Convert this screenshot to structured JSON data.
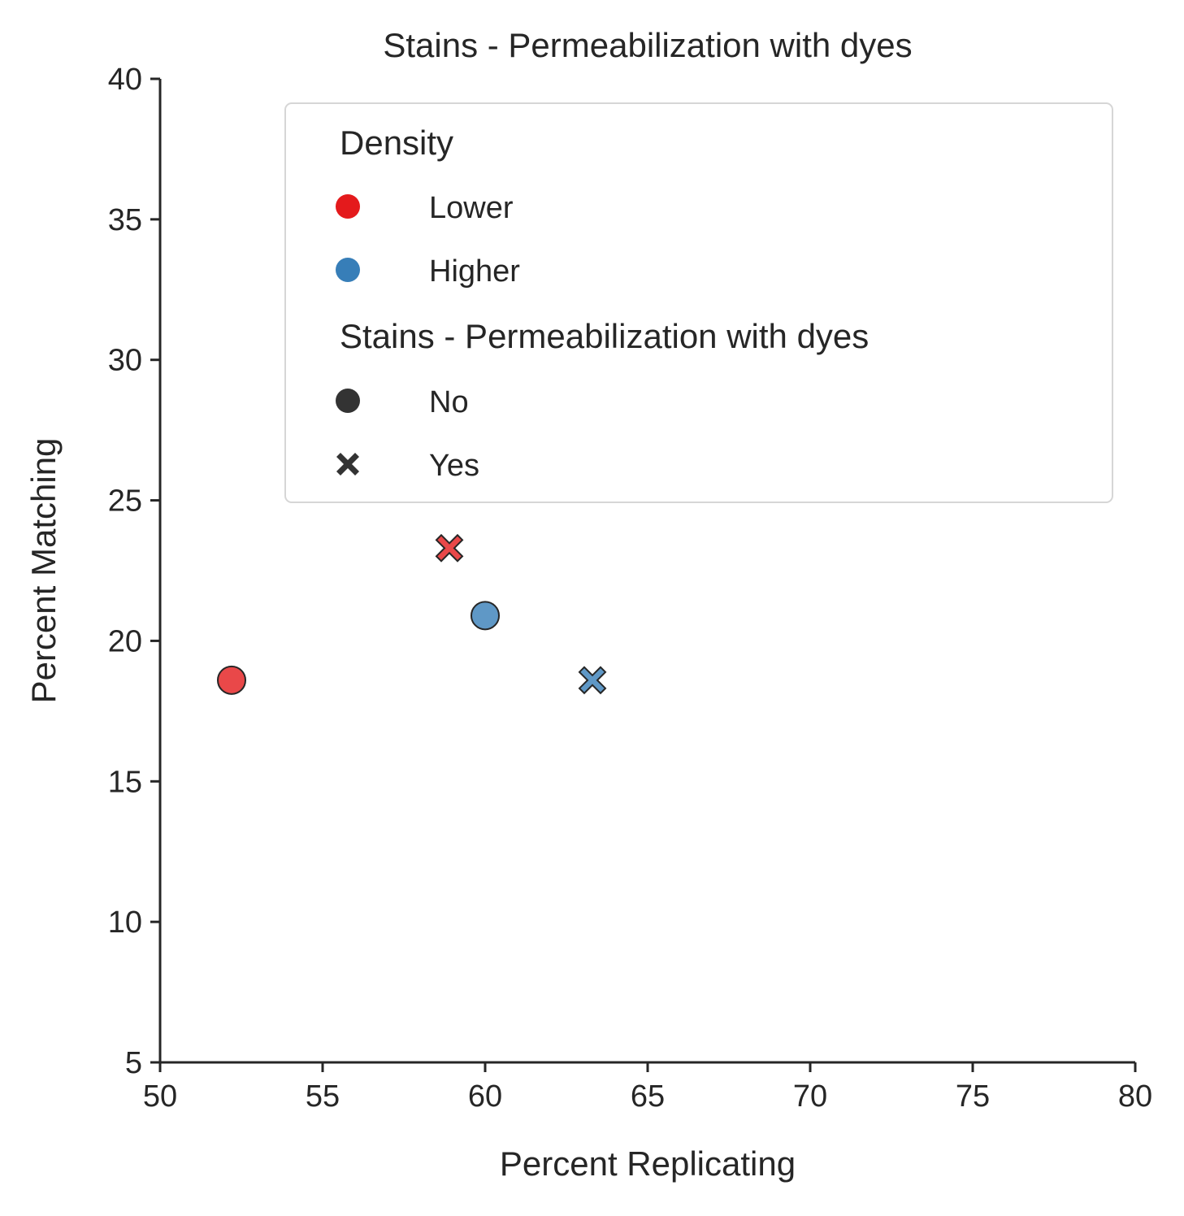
{
  "chart_data": {
    "type": "scatter",
    "title": "Stains - Permeabilization with dyes",
    "xlabel": "Percent Replicating",
    "ylabel": "Percent Matching",
    "xlim": [
      50,
      80
    ],
    "ylim": [
      5,
      40
    ],
    "xticks": [
      "50",
      "55",
      "60",
      "65",
      "70",
      "75",
      "80"
    ],
    "yticks": [
      "5",
      "10",
      "15",
      "20",
      "25",
      "30",
      "35",
      "40"
    ],
    "grid": false,
    "legend": {
      "placement": "upper-center",
      "hue_title": "Density",
      "hue_entries": [
        {
          "label": "Lower",
          "color": "#e41a1c"
        },
        {
          "label": "Higher",
          "color": "#377eb8"
        }
      ],
      "style_title": "Stains - Permeabilization with dyes",
      "style_entries": [
        {
          "label": "No",
          "marker": "circle"
        },
        {
          "label": "Yes",
          "marker": "x"
        }
      ]
    },
    "points": [
      {
        "density": "Lower",
        "stain": "No",
        "x": 52.2,
        "y": 18.6
      },
      {
        "density": "Lower",
        "stain": "Yes",
        "x": 58.9,
        "y": 23.3
      },
      {
        "density": "Higher",
        "stain": "No",
        "x": 60.0,
        "y": 20.9
      },
      {
        "density": "Higher",
        "stain": "Yes",
        "x": 63.3,
        "y": 18.6
      }
    ],
    "colors": {
      "Lower": "#e41a1c",
      "Higher": "#377eb8",
      "axis": "#262626",
      "marker_edge": "#262626",
      "legend_style_marker": "#333333"
    }
  }
}
